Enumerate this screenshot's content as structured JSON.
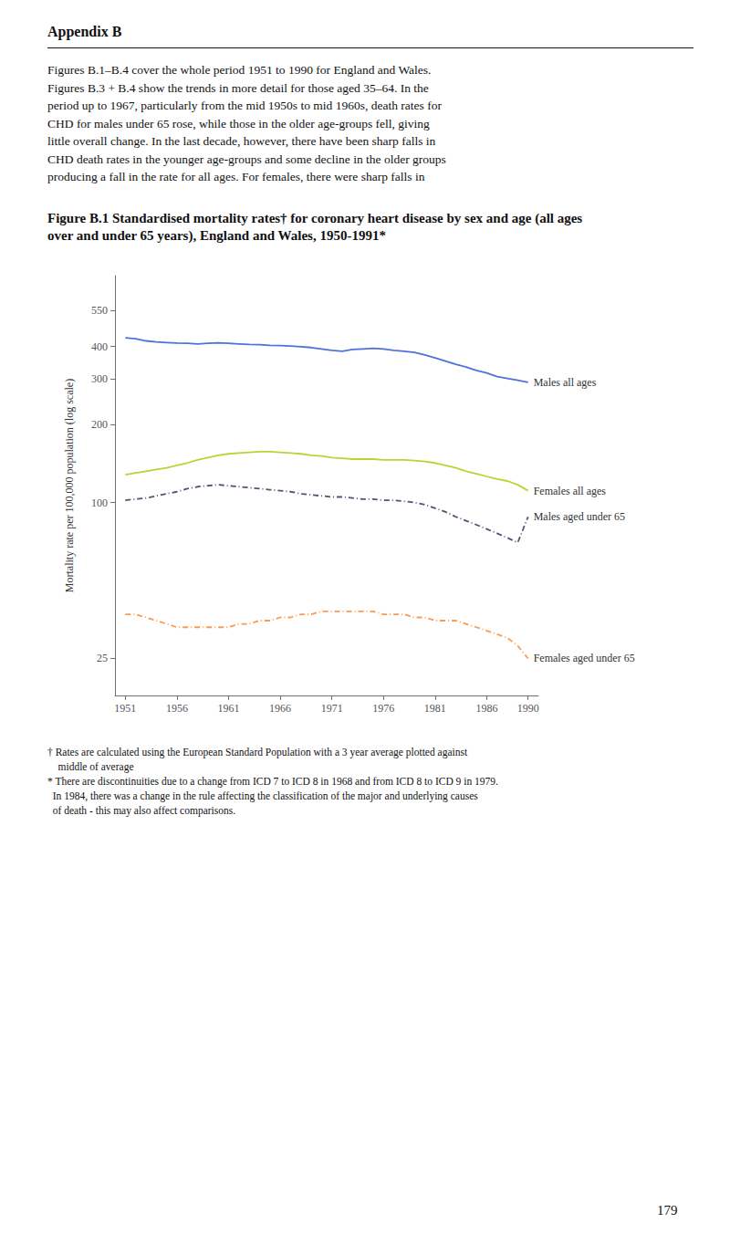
{
  "chart_data": {
    "type": "line",
    "heading": "Appendix B",
    "paragraph": [
      "Figures B.1–B.4 cover the whole period 1951 to 1990 for England and Wales.",
      "Figures B.3 + B.4 show the trends in more detail for those aged 35–64. In the",
      "period up to 1967, particularly from the mid 1950s to mid 1960s, death rates for",
      "CHD for males under 65 rose, while those in the older age-groups fell, giving",
      "little overall change. In the last decade, however, there have been sharp falls in",
      "CHD death rates in the younger age-groups and some decline in the older groups",
      "producing a fall in the rate for all ages. For females, there were sharp falls in"
    ],
    "title": "Figure B.1 Standardised mortality rates† for coronary heart disease by sex and age (all ages over and under 65 years), England and Wales, 1950-1991*",
    "ylabel": "Mortality rate per 100,000 population (log scale)",
    "log": "y",
    "grid": false,
    "xlim": [
      1950,
      1991
    ],
    "xticks": [
      1951,
      1956,
      1961,
      1966,
      1971,
      1976,
      1981,
      1986,
      1990
    ],
    "ylim": [
      18,
      750
    ],
    "yticks": [
      25,
      100,
      200,
      300,
      400,
      550
    ],
    "x": [
      1951,
      1952,
      1953,
      1954,
      1955,
      1956,
      1957,
      1958,
      1959,
      1960,
      1961,
      1962,
      1963,
      1964,
      1965,
      1966,
      1967,
      1968,
      1969,
      1970,
      1971,
      1972,
      1973,
      1974,
      1975,
      1976,
      1977,
      1978,
      1979,
      1980,
      1981,
      1982,
      1983,
      1984,
      1985,
      1986,
      1987,
      1988,
      1989,
      1990
    ],
    "series": [
      {
        "name": "Males all ages",
        "line_style": "solid",
        "values": [
          432,
          428,
          420,
          416,
          414,
          412,
          411,
          409,
          411,
          413,
          411,
          409,
          407,
          406,
          404,
          403,
          401,
          399,
          396,
          391,
          386,
          383,
          389,
          391,
          393,
          391,
          386,
          383,
          379,
          371,
          361,
          351,
          341,
          333,
          323,
          316,
          306,
          301,
          296,
          291
        ]
      },
      {
        "name": "Females all ages",
        "line_style": "solid",
        "values": [
          128,
          130,
          132,
          134,
          136,
          139,
          142,
          146,
          149,
          152,
          154,
          155,
          156,
          157,
          157,
          156,
          155,
          154,
          152,
          151,
          149,
          148,
          147,
          147,
          147,
          146,
          146,
          146,
          145,
          144,
          142,
          139,
          136,
          132,
          129,
          126,
          123,
          121,
          117,
          111
        ]
      },
      {
        "name": "Males aged under 65",
        "line_style": "dashdot",
        "values": [
          102,
          103,
          104,
          106,
          108,
          110,
          113,
          115,
          116,
          117,
          116,
          115,
          114,
          113,
          112,
          111,
          110,
          108,
          107,
          106,
          105,
          105,
          104,
          103,
          103,
          102,
          102,
          101,
          100,
          98,
          95,
          92,
          88,
          85,
          82,
          79,
          76,
          73,
          70,
          88
        ]
      },
      {
        "name": "Females aged under 65",
        "line_style": "dashdot",
        "values": [
          37,
          37,
          36,
          35,
          34,
          33,
          33,
          33,
          33,
          33,
          33,
          34,
          34,
          35,
          35,
          36,
          36,
          37,
          37,
          38,
          38,
          38,
          38,
          38,
          38,
          37,
          37,
          37,
          36,
          36,
          35,
          35,
          35,
          34,
          33,
          32,
          31,
          30,
          28,
          25
        ]
      }
    ],
    "footnotes": [
      "† Rates are calculated using the European Standard Population with a 3 year average plotted against",
      "    middle of average",
      "* There are discontinuities due to a change from ICD 7 to ICD 8 in 1968 and from ICD 8 to ICD 9 in 1979.",
      "  In 1984, there was a change in the rule affecting the classification of the major and underlying causes",
      "  of death - this may also affect comparisons."
    ],
    "page_number": "179"
  }
}
